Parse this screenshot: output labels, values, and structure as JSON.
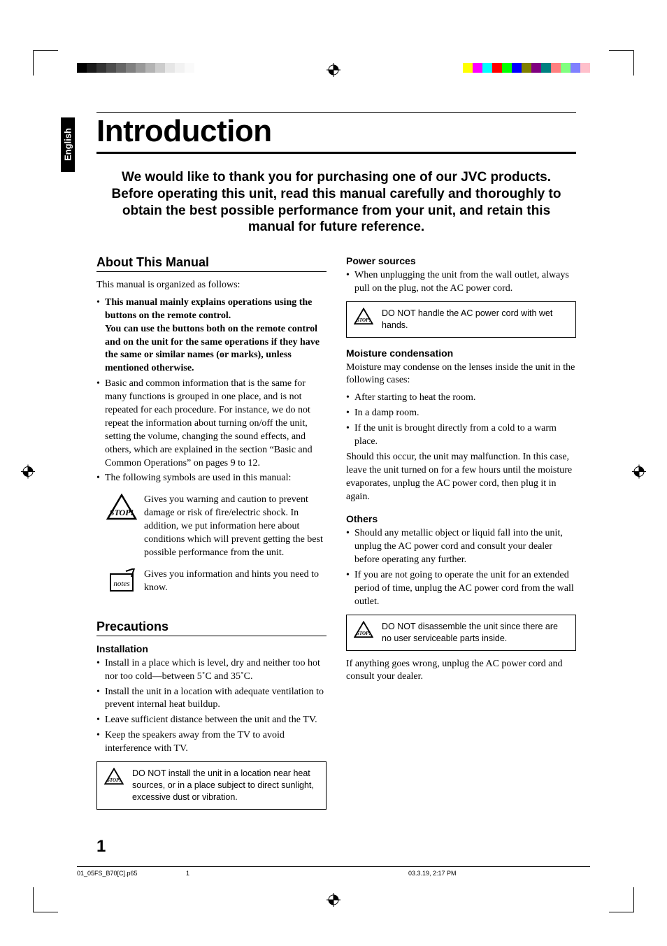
{
  "print": {
    "gray_shades": [
      "#000000",
      "#1a1a1a",
      "#333333",
      "#4d4d4d",
      "#666666",
      "#808080",
      "#999999",
      "#b3b3b3",
      "#cccccc",
      "#e6e6e6",
      "#f2f2f2",
      "#fafafa",
      "#ffffff"
    ],
    "cmyk_shades": [
      "#ffff00",
      "#ff00ff",
      "#00ffff",
      "#ff0000",
      "#00ff00",
      "#0000ff",
      "#808000",
      "#800080",
      "#008080",
      "#ff8080",
      "#80ff80",
      "#8080ff",
      "#ffc0cb"
    ]
  },
  "lang_tab": "English",
  "title": "Introduction",
  "intro": "We would like to thank you for purchasing one of our JVC products. Before operating this unit, read this manual carefully and thoroughly to obtain the best possible performance from your unit, and retain this manual for future reference.",
  "left": {
    "h1": "About This Manual",
    "p1": "This manual is organized as follows:",
    "b1": {
      "bold": "This manual mainly explains operations using the buttons on the remote control.",
      "bold2": "You can use the buttons both on the remote control and on the unit for the same operations if they have the same or similar names (or marks), unless mentioned otherwise."
    },
    "b2": "Basic and common information that is the same for many functions is grouped in one place, and is not repeated for each procedure. For instance, we do not repeat the information about turning on/off the unit, setting the volume, changing the sound effects, and others, which are explained in the section “Basic and Common Operations” on pages 9 to 12.",
    "b3": "The following symbols are used in this manual:",
    "stop_desc": "Gives you warning and caution to prevent damage or risk of fire/electric shock. In addition, we put information here about conditions which will prevent getting the best possible performance from the unit.",
    "notes_desc": "Gives you information and hints you need to know.",
    "h2": "Precautions",
    "sub1": "Installation",
    "inst": {
      "i1": "Install in a place which is level, dry and neither too hot nor too cold—between 5˚C and 35˚C.",
      "i2": "Install the unit in a location with adequate ventilation to prevent internal heat buildup.",
      "i3": "Leave sufficient distance between the unit and the TV.",
      "i4": "Keep the speakers away from the TV to avoid interference with TV."
    },
    "warn1": "DO NOT install the unit in a location near heat sources, or in a place subject to direct sunlight, excessive dust or vibration."
  },
  "right": {
    "sub1": "Power sources",
    "ps1": "When unplugging the unit from the wall outlet, always pull on the plug, not the AC power cord.",
    "warn1": "DO NOT handle the AC power cord with wet hands.",
    "sub2": "Moisture condensation",
    "mc_p": "Moisture may condense on the lenses inside the unit in the following cases:",
    "mc1": "After starting to heat the room.",
    "mc2": "In a damp room.",
    "mc3": "If the unit is brought directly from a cold to a warm place.",
    "mc_p2": "Should this occur, the unit may malfunction. In this case, leave the unit turned on for a few hours until the moisture evaporates, unplug the AC power cord, then plug it in again.",
    "sub3": "Others",
    "o1": "Should any metallic object or liquid fall into the unit, unplug the AC power cord and consult your dealer before operating any further.",
    "o2": "If you are not going to operate the unit for an extended period of time, unplug the AC power cord from the wall outlet.",
    "warn2": "DO NOT disassemble the unit since there are no user serviceable parts inside.",
    "final": "If anything goes wrong, unplug the AC power cord and consult your dealer."
  },
  "page_number": "1",
  "footer": {
    "file": "01_05FS_B70[C].p65",
    "page": "1",
    "stamp": "03.3.19, 2:17 PM"
  }
}
